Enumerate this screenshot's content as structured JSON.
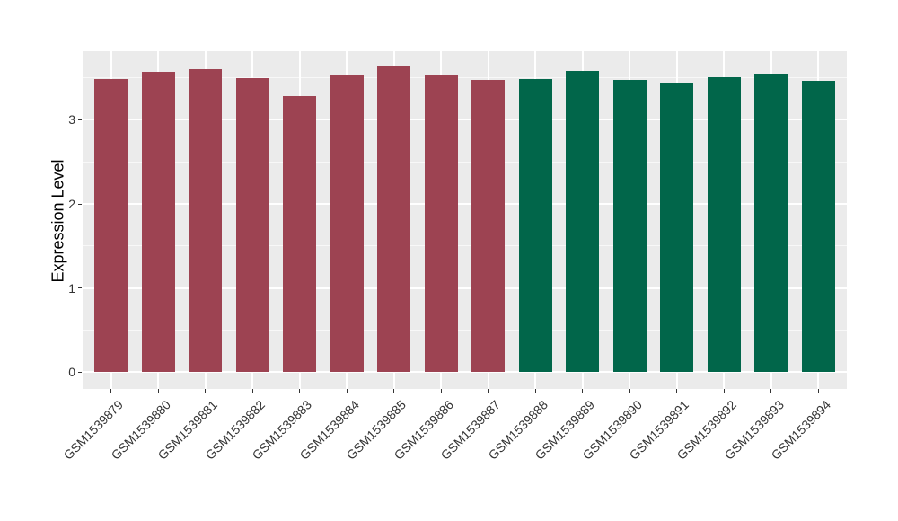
{
  "chart_data": {
    "type": "bar",
    "title": "",
    "xlabel": "",
    "ylabel": "Expression Level",
    "categories": [
      "GSM1539879",
      "GSM1539880",
      "GSM1539881",
      "GSM1539882",
      "GSM1539883",
      "GSM1539884",
      "GSM1539885",
      "GSM1539886",
      "GSM1539887",
      "GSM1539888",
      "GSM1539889",
      "GSM1539890",
      "GSM1539891",
      "GSM1539892",
      "GSM1539893",
      "GSM1539894"
    ],
    "values": [
      3.49,
      3.57,
      3.6,
      3.5,
      3.28,
      3.53,
      3.64,
      3.53,
      3.47,
      3.48,
      3.58,
      3.47,
      3.44,
      3.51,
      3.55,
      3.46
    ],
    "groups": [
      0,
      0,
      0,
      0,
      0,
      0,
      0,
      0,
      0,
      1,
      1,
      1,
      1,
      1,
      1,
      1
    ],
    "group_colors": [
      "#9D4352",
      "#01664A"
    ],
    "ytick_labels": [
      "0",
      "1",
      "2",
      "3"
    ],
    "yticks": [
      0,
      1,
      2,
      3
    ],
    "minor_yticks": [
      0.5,
      1.5,
      2.5,
      3.5
    ],
    "ylim": [
      -0.19,
      3.82
    ],
    "bar_width_frac": 0.7,
    "grid": true,
    "legend": "none",
    "panel_bg": "#EBEBEB",
    "grid_color": "#FFFFFF",
    "axis_text_color": "#333333",
    "axis_title_color": "#000000"
  }
}
